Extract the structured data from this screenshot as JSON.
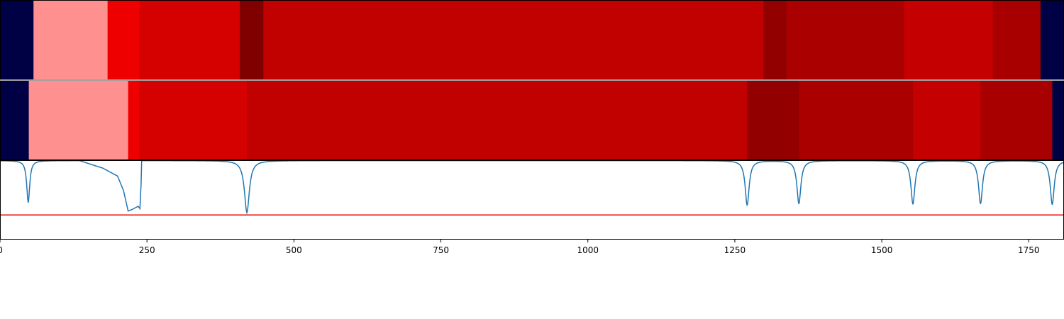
{
  "chart_data": [
    {
      "type": "heatmap",
      "xlim": [
        0,
        1810
      ],
      "segments": [
        {
          "start": 0,
          "end": 57,
          "color": "#000044"
        },
        {
          "start": 57,
          "end": 183,
          "color": "#ff9090"
        },
        {
          "start": 183,
          "end": 237,
          "color": "#ee0000"
        },
        {
          "start": 237,
          "end": 408,
          "color": "#d50000"
        },
        {
          "start": 408,
          "end": 448,
          "color": "#800000"
        },
        {
          "start": 448,
          "end": 1299,
          "color": "#c10000"
        },
        {
          "start": 1299,
          "end": 1338,
          "color": "#930000"
        },
        {
          "start": 1338,
          "end": 1538,
          "color": "#aa0000"
        },
        {
          "start": 1538,
          "end": 1689,
          "color": "#c40000"
        },
        {
          "start": 1689,
          "end": 1770,
          "color": "#a80000"
        },
        {
          "start": 1770,
          "end": 1810,
          "color": "#000044"
        }
      ]
    },
    {
      "type": "heatmap",
      "xlim": [
        0,
        1810
      ],
      "segments": [
        {
          "start": 0,
          "end": 49,
          "color": "#000044"
        },
        {
          "start": 49,
          "end": 218,
          "color": "#ff9090"
        },
        {
          "start": 218,
          "end": 237,
          "color": "#ee0000"
        },
        {
          "start": 237,
          "end": 420,
          "color": "#d50000"
        },
        {
          "start": 420,
          "end": 1271,
          "color": "#c10000"
        },
        {
          "start": 1271,
          "end": 1359,
          "color": "#930000"
        },
        {
          "start": 1359,
          "end": 1553,
          "color": "#aa0000"
        },
        {
          "start": 1553,
          "end": 1668,
          "color": "#c40000"
        },
        {
          "start": 1668,
          "end": 1790,
          "color": "#a80000"
        },
        {
          "start": 1790,
          "end": 1810,
          "color": "#000044"
        }
      ]
    },
    {
      "type": "line",
      "xlim": [
        0,
        1810
      ],
      "ylim": [
        0,
        1
      ],
      "line_color": "#1f77b4",
      "threshold": {
        "y": 0.31,
        "color": "#ee0000"
      },
      "xticks": [
        0,
        250,
        500,
        750,
        1000,
        1250,
        1500,
        1750
      ],
      "xticklabels": [
        "0",
        "250",
        "500",
        "750",
        "1000",
        "1250",
        "1500",
        "1750"
      ],
      "baseline": 0.995,
      "dips": [
        {
          "center": 48,
          "depth": 0.53,
          "width": 3
        },
        {
          "center": 420,
          "depth": 0.655,
          "width": 5
        },
        {
          "center": 1271,
          "depth": 0.565,
          "width": 4
        },
        {
          "center": 1359,
          "depth": 0.545,
          "width": 4
        },
        {
          "center": 1553,
          "depth": 0.55,
          "width": 4
        },
        {
          "center": 1668,
          "depth": 0.545,
          "width": 4
        },
        {
          "center": 1790,
          "depth": 0.555,
          "width": 4
        }
      ],
      "trough": {
        "start": 175,
        "end": 240,
        "points": [
          [
            175,
            0.9
          ],
          [
            200,
            0.8
          ],
          [
            210,
            0.62
          ],
          [
            218,
            0.36
          ],
          [
            225,
            0.38
          ],
          [
            235,
            0.42
          ],
          [
            238,
            0.39
          ],
          [
            240,
            0.7
          ]
        ]
      }
    }
  ]
}
